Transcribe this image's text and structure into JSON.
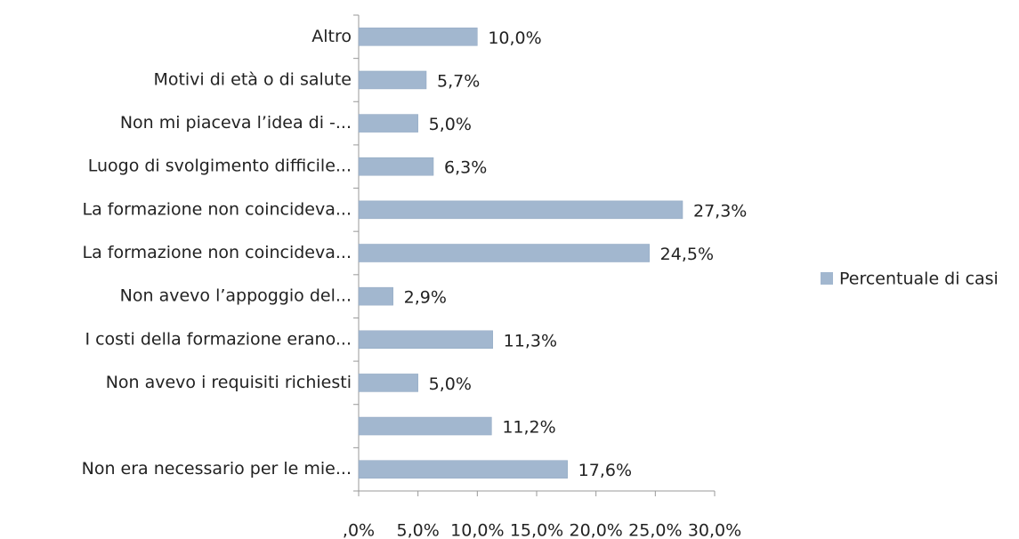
{
  "chart_data": {
    "type": "bar",
    "orientation": "horizontal",
    "categories": [
      "Altro",
      "Motivi di età o di salute",
      "Non mi piaceva l’idea di  -...",
      "Luogo di svolgimento difficile...",
      "La formazione non coincideva...",
      "La formazione non coincideva...",
      "Non avevo l’appoggio del...",
      "I costi della formazione erano...",
      "Non avevo i requisiti richiesti",
      null,
      "Non era necessario per le mie..."
    ],
    "series": [
      {
        "name": "Percentuale di casi",
        "color": "#a2b7cf",
        "values": [
          10.0,
          5.7,
          5.0,
          6.3,
          27.3,
          24.5,
          2.9,
          11.3,
          5.0,
          11.2,
          17.6
        ],
        "value_labels": [
          "10,0%",
          "5,7%",
          "5,0%",
          "6,3%",
          "27,3%",
          "24,5%",
          "2,9%",
          "11,3%",
          "5,0%",
          "11,2%",
          "17,6%"
        ]
      }
    ],
    "xlim": [
      0,
      30
    ],
    "xticks": [
      {
        "value": 0,
        "label": ",0%"
      },
      {
        "value": 5,
        "label": "5,0%"
      },
      {
        "value": 10,
        "label": "10,0%"
      },
      {
        "value": 15,
        "label": "15,0%"
      },
      {
        "value": 20,
        "label": "20,0%"
      },
      {
        "value": 25,
        "label": "25,0%"
      },
      {
        "value": 30,
        "label": "30,0%"
      }
    ],
    "legend": "right"
  }
}
